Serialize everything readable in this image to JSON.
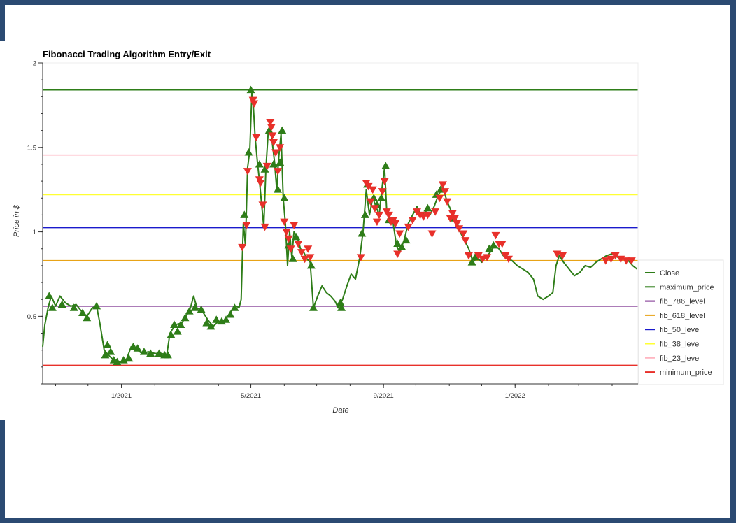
{
  "chart_data": {
    "type": "line",
    "title": "Fibonacci Trading Algorithm Entry/Exit",
    "xlabel": "Date",
    "ylabel": "Price in $",
    "x_range": [
      "2020-10-20",
      "2022-04-25"
    ],
    "ylim": [
      0.1,
      2.0
    ],
    "y_ticks": [
      {
        "value": 0.5,
        "label": "0.5"
      },
      {
        "value": 1.0,
        "label": "1"
      },
      {
        "value": 1.5,
        "label": "1.5"
      },
      {
        "value": 2.0,
        "label": "2"
      }
    ],
    "x_ticks": [
      {
        "date": "2021-01-01",
        "label": "1/2021"
      },
      {
        "date": "2021-05-01",
        "label": "5/2021"
      },
      {
        "date": "2021-09-01",
        "label": "9/2021"
      },
      {
        "date": "2022-01-01",
        "label": "1/2022"
      }
    ],
    "grid": false,
    "legend_position": "right",
    "levels": [
      {
        "name": "maximum_price",
        "value": 1.84,
        "color": "#2e7d18"
      },
      {
        "name": "fib_786_level",
        "value": 0.56,
        "color": "#7b2d8e"
      },
      {
        "name": "fib_618_level",
        "value": 0.83,
        "color": "#e8a317"
      },
      {
        "name": "fib_50_level",
        "value": 1.025,
        "color": "#1a1acc"
      },
      {
        "name": "fib_38_level",
        "value": 1.22,
        "color": "#ffff33"
      },
      {
        "name": "fib_23_level",
        "value": 1.455,
        "color": "#ffb6c1"
      },
      {
        "name": "minimum_price",
        "value": 0.21,
        "color": "#e8302a"
      }
    ],
    "close_series": {
      "name": "Close",
      "color": "#2e7d18",
      "points": [
        [
          "2020-10-20",
          0.32
        ],
        [
          "2020-10-22",
          0.45
        ],
        [
          "2020-10-25",
          0.55
        ],
        [
          "2020-10-28",
          0.62
        ],
        [
          "2020-11-01",
          0.56
        ],
        [
          "2020-11-05",
          0.62
        ],
        [
          "2020-11-10",
          0.58
        ],
        [
          "2020-11-15",
          0.56
        ],
        [
          "2020-11-20",
          0.57
        ],
        [
          "2020-11-25",
          0.53
        ],
        [
          "2020-11-30",
          0.5
        ],
        [
          "2020-12-05",
          0.55
        ],
        [
          "2020-12-09",
          0.56
        ],
        [
          "2020-12-12",
          0.46
        ],
        [
          "2020-12-16",
          0.3
        ],
        [
          "2020-12-20",
          0.27
        ],
        [
          "2020-12-25",
          0.24
        ],
        [
          "2021-01-01",
          0.23
        ],
        [
          "2021-01-06",
          0.25
        ],
        [
          "2021-01-10",
          0.32
        ],
        [
          "2021-01-16",
          0.3
        ],
        [
          "2021-01-20",
          0.28
        ],
        [
          "2021-01-26",
          0.29
        ],
        [
          "2021-02-01",
          0.28
        ],
        [
          "2021-02-07",
          0.28
        ],
        [
          "2021-02-12",
          0.27
        ],
        [
          "2021-02-15",
          0.4
        ],
        [
          "2021-02-20",
          0.45
        ],
        [
          "2021-02-26",
          0.46
        ],
        [
          "2021-03-02",
          0.5
        ],
        [
          "2021-03-06",
          0.55
        ],
        [
          "2021-03-09",
          0.62
        ],
        [
          "2021-03-12",
          0.55
        ],
        [
          "2021-03-17",
          0.53
        ],
        [
          "2021-03-22",
          0.48
        ],
        [
          "2021-03-27",
          0.44
        ],
        [
          "2021-04-01",
          0.47
        ],
        [
          "2021-04-05",
          0.47
        ],
        [
          "2021-04-10",
          0.5
        ],
        [
          "2021-04-14",
          0.54
        ],
        [
          "2021-04-18",
          0.56
        ],
        [
          "2021-04-20",
          0.55
        ],
        [
          "2021-04-22",
          0.6
        ],
        [
          "2021-04-24",
          1.05
        ],
        [
          "2021-04-26",
          0.92
        ],
        [
          "2021-04-28",
          1.38
        ],
        [
          "2021-04-30",
          1.48
        ],
        [
          "2021-05-02",
          1.83
        ],
        [
          "2021-05-03",
          1.78
        ],
        [
          "2021-05-05",
          1.56
        ],
        [
          "2021-05-07",
          1.42
        ],
        [
          "2021-05-09",
          1.3
        ],
        [
          "2021-05-11",
          1.16
        ],
        [
          "2021-05-13",
          1.03
        ],
        [
          "2021-05-15",
          1.38
        ],
        [
          "2021-05-17",
          1.58
        ],
        [
          "2021-05-19",
          1.61
        ],
        [
          "2021-05-21",
          1.52
        ],
        [
          "2021-05-23",
          1.41
        ],
        [
          "2021-05-25",
          1.25
        ],
        [
          "2021-05-27",
          1.45
        ],
        [
          "2021-05-29",
          1.58
        ],
        [
          "2021-05-31",
          1.2
        ],
        [
          "2021-06-02",
          1.05
        ],
        [
          "2021-06-04",
          0.8
        ],
        [
          "2021-06-06",
          1.0
        ],
        [
          "2021-06-08",
          0.85
        ],
        [
          "2021-06-10",
          1.0
        ],
        [
          "2021-06-13",
          0.97
        ],
        [
          "2021-06-16",
          0.9
        ],
        [
          "2021-06-19",
          0.88
        ],
        [
          "2021-06-22",
          0.84
        ],
        [
          "2021-06-25",
          0.82
        ],
        [
          "2021-06-28",
          0.55
        ],
        [
          "2021-07-02",
          0.62
        ],
        [
          "2021-07-06",
          0.68
        ],
        [
          "2021-07-10",
          0.64
        ],
        [
          "2021-07-14",
          0.62
        ],
        [
          "2021-07-18",
          0.59
        ],
        [
          "2021-07-21",
          0.55
        ],
        [
          "2021-07-25",
          0.6
        ],
        [
          "2021-07-29",
          0.68
        ],
        [
          "2021-08-02",
          0.75
        ],
        [
          "2021-08-06",
          0.72
        ],
        [
          "2021-08-10",
          0.85
        ],
        [
          "2021-08-13",
          1.0
        ],
        [
          "2021-08-16",
          1.25
        ],
        [
          "2021-08-19",
          1.1
        ],
        [
          "2021-08-22",
          1.2
        ],
        [
          "2021-08-25",
          1.15
        ],
        [
          "2021-08-28",
          1.1
        ],
        [
          "2021-08-31",
          1.28
        ],
        [
          "2021-09-02",
          1.38
        ],
        [
          "2021-09-04",
          1.12
        ],
        [
          "2021-09-07",
          1.05
        ],
        [
          "2021-09-10",
          1.05
        ],
        [
          "2021-09-13",
          0.92
        ],
        [
          "2021-09-16",
          0.88
        ],
        [
          "2021-09-20",
          0.95
        ],
        [
          "2021-09-24",
          1.05
        ],
        [
          "2021-09-28",
          1.1
        ],
        [
          "2021-10-02",
          1.15
        ],
        [
          "2021-10-06",
          1.1
        ],
        [
          "2021-10-10",
          1.12
        ],
        [
          "2021-10-14",
          1.1
        ],
        [
          "2021-10-18",
          1.15
        ],
        [
          "2021-10-22",
          1.22
        ],
        [
          "2021-10-26",
          1.26
        ],
        [
          "2021-10-30",
          1.18
        ],
        [
          "2021-11-03",
          1.12
        ],
        [
          "2021-11-07",
          1.08
        ],
        [
          "2021-11-11",
          1.0
        ],
        [
          "2021-11-15",
          0.95
        ],
        [
          "2021-11-19",
          0.9
        ],
        [
          "2021-11-23",
          0.82
        ],
        [
          "2021-11-27",
          0.85
        ],
        [
          "2021-12-01",
          0.82
        ],
        [
          "2021-12-05",
          0.85
        ],
        [
          "2021-12-09",
          0.88
        ],
        [
          "2021-12-13",
          0.92
        ],
        [
          "2021-12-17",
          0.9
        ],
        [
          "2021-12-21",
          0.86
        ],
        [
          "2021-12-25",
          0.84
        ],
        [
          "2021-12-29",
          0.83
        ],
        [
          "2022-01-03",
          0.8
        ],
        [
          "2022-01-08",
          0.78
        ],
        [
          "2022-01-13",
          0.76
        ],
        [
          "2022-01-18",
          0.72
        ],
        [
          "2022-01-22",
          0.62
        ],
        [
          "2022-01-27",
          0.6
        ],
        [
          "2022-02-01",
          0.62
        ],
        [
          "2022-02-05",
          0.64
        ],
        [
          "2022-02-08",
          0.8
        ],
        [
          "2022-02-11",
          0.86
        ],
        [
          "2022-02-15",
          0.82
        ],
        [
          "2022-02-20",
          0.78
        ],
        [
          "2022-02-25",
          0.74
        ],
        [
          "2022-03-02",
          0.76
        ],
        [
          "2022-03-07",
          0.8
        ],
        [
          "2022-03-12",
          0.79
        ],
        [
          "2022-03-17",
          0.82
        ],
        [
          "2022-03-22",
          0.84
        ],
        [
          "2022-03-27",
          0.86
        ],
        [
          "2022-04-01",
          0.87
        ],
        [
          "2022-04-06",
          0.85
        ],
        [
          "2022-04-11",
          0.84
        ],
        [
          "2022-04-16",
          0.83
        ],
        [
          "2022-04-20",
          0.8
        ],
        [
          "2022-04-24",
          0.78
        ]
      ]
    },
    "buy_signals": [
      [
        "2020-10-26",
        0.62
      ],
      [
        "2020-10-29",
        0.55
      ],
      [
        "2020-11-07",
        0.57
      ],
      [
        "2020-11-18",
        0.55
      ],
      [
        "2020-11-26",
        0.52
      ],
      [
        "2020-11-30",
        0.49
      ],
      [
        "2020-12-09",
        0.56
      ],
      [
        "2020-12-17",
        0.27
      ],
      [
        "2020-12-19",
        0.33
      ],
      [
        "2020-12-22",
        0.29
      ],
      [
        "2020-12-25",
        0.24
      ],
      [
        "2020-12-28",
        0.23
      ],
      [
        "2021-01-03",
        0.24
      ],
      [
        "2021-01-08",
        0.25
      ],
      [
        "2021-01-12",
        0.32
      ],
      [
        "2021-01-16",
        0.31
      ],
      [
        "2021-01-22",
        0.29
      ],
      [
        "2021-01-28",
        0.28
      ],
      [
        "2021-02-05",
        0.28
      ],
      [
        "2021-02-10",
        0.27
      ],
      [
        "2021-02-13",
        0.27
      ],
      [
        "2021-02-16",
        0.39
      ],
      [
        "2021-02-19",
        0.45
      ],
      [
        "2021-02-22",
        0.41
      ],
      [
        "2021-02-25",
        0.45
      ],
      [
        "2021-03-01",
        0.49
      ],
      [
        "2021-03-05",
        0.53
      ],
      [
        "2021-03-10",
        0.55
      ],
      [
        "2021-03-16",
        0.54
      ],
      [
        "2021-03-21",
        0.46
      ],
      [
        "2021-03-25",
        0.44
      ],
      [
        "2021-03-30",
        0.48
      ],
      [
        "2021-04-04",
        0.47
      ],
      [
        "2021-04-08",
        0.48
      ],
      [
        "2021-04-12",
        0.51
      ],
      [
        "2021-04-16",
        0.55
      ],
      [
        "2021-04-25",
        1.1
      ],
      [
        "2021-04-29",
        1.47
      ],
      [
        "2021-05-01",
        1.84
      ],
      [
        "2021-05-09",
        1.4
      ],
      [
        "2021-05-14",
        1.37
      ],
      [
        "2021-05-18",
        1.6
      ],
      [
        "2021-05-22",
        1.4
      ],
      [
        "2021-05-26",
        1.25
      ],
      [
        "2021-05-28",
        1.41
      ],
      [
        "2021-05-30",
        1.6
      ],
      [
        "2021-06-01",
        1.2
      ],
      [
        "2021-06-05",
        0.92
      ],
      [
        "2021-06-09",
        0.84
      ],
      [
        "2021-06-12",
        0.97
      ],
      [
        "2021-06-26",
        0.8
      ],
      [
        "2021-06-28",
        0.55
      ],
      [
        "2021-07-24",
        0.55
      ],
      [
        "2021-07-23",
        0.58
      ],
      [
        "2021-08-12",
        0.99
      ],
      [
        "2021-08-15",
        1.1
      ],
      [
        "2021-08-17",
        1.28
      ],
      [
        "2021-08-23",
        1.2
      ],
      [
        "2021-08-26",
        1.16
      ],
      [
        "2021-08-30",
        1.2
      ],
      [
        "2021-09-03",
        1.39
      ],
      [
        "2021-09-06",
        1.07
      ],
      [
        "2021-09-14",
        0.93
      ],
      [
        "2021-09-18",
        0.91
      ],
      [
        "2021-09-22",
        0.95
      ],
      [
        "2021-10-12",
        1.14
      ],
      [
        "2021-10-20",
        1.22
      ],
      [
        "2021-10-24",
        1.25
      ],
      [
        "2021-11-05",
        1.08
      ],
      [
        "2021-11-22",
        0.82
      ],
      [
        "2021-11-25",
        0.85
      ],
      [
        "2021-12-08",
        0.9
      ],
      [
        "2021-12-12",
        0.92
      ]
    ],
    "sell_signals": [
      [
        "2021-04-23",
        0.91
      ],
      [
        "2021-04-27",
        1.04
      ],
      [
        "2021-04-28",
        1.36
      ],
      [
        "2021-05-03",
        1.78
      ],
      [
        "2021-05-04",
        1.76
      ],
      [
        "2021-05-06",
        1.56
      ],
      [
        "2021-05-09",
        1.31
      ],
      [
        "2021-05-10",
        1.29
      ],
      [
        "2021-05-12",
        1.16
      ],
      [
        "2021-05-14",
        1.03
      ],
      [
        "2021-05-16",
        1.39
      ],
      [
        "2021-05-19",
        1.65
      ],
      [
        "2021-05-20",
        1.62
      ],
      [
        "2021-05-21",
        1.57
      ],
      [
        "2021-05-22",
        1.53
      ],
      [
        "2021-05-24",
        1.47
      ],
      [
        "2021-05-26",
        1.36
      ],
      [
        "2021-05-28",
        1.5
      ],
      [
        "2021-06-01",
        1.06
      ],
      [
        "2021-06-03",
        1.0
      ],
      [
        "2021-06-05",
        0.96
      ],
      [
        "2021-06-07",
        0.9
      ],
      [
        "2021-06-10",
        1.04
      ],
      [
        "2021-06-14",
        0.93
      ],
      [
        "2021-06-17",
        0.88
      ],
      [
        "2021-06-20",
        0.84
      ],
      [
        "2021-06-23",
        0.9
      ],
      [
        "2021-06-25",
        0.85
      ],
      [
        "2021-08-11",
        0.85
      ],
      [
        "2021-08-16",
        1.29
      ],
      [
        "2021-08-18",
        1.27
      ],
      [
        "2021-08-20",
        1.18
      ],
      [
        "2021-08-22",
        1.25
      ],
      [
        "2021-08-24",
        1.14
      ],
      [
        "2021-08-26",
        1.06
      ],
      [
        "2021-08-28",
        1.1
      ],
      [
        "2021-08-31",
        1.24
      ],
      [
        "2021-09-02",
        1.3
      ],
      [
        "2021-09-04",
        1.12
      ],
      [
        "2021-09-06",
        1.1
      ],
      [
        "2021-09-08",
        1.06
      ],
      [
        "2021-09-10",
        1.07
      ],
      [
        "2021-09-12",
        1.05
      ],
      [
        "2021-09-14",
        0.87
      ],
      [
        "2021-09-16",
        0.99
      ],
      [
        "2021-09-24",
        1.03
      ],
      [
        "2021-09-28",
        1.07
      ],
      [
        "2021-10-02",
        1.12
      ],
      [
        "2021-10-05",
        1.1
      ],
      [
        "2021-10-08",
        1.09
      ],
      [
        "2021-10-12",
        1.1
      ],
      [
        "2021-10-16",
        0.99
      ],
      [
        "2021-10-19",
        1.12
      ],
      [
        "2021-10-23",
        1.2
      ],
      [
        "2021-10-26",
        1.28
      ],
      [
        "2021-10-28",
        1.24
      ],
      [
        "2021-10-30",
        1.18
      ],
      [
        "2021-11-02",
        1.08
      ],
      [
        "2021-11-04",
        1.11
      ],
      [
        "2021-11-06",
        1.08
      ],
      [
        "2021-11-08",
        1.05
      ],
      [
        "2021-11-10",
        1.02
      ],
      [
        "2021-11-14",
        0.99
      ],
      [
        "2021-11-16",
        0.95
      ],
      [
        "2021-11-19",
        0.86
      ],
      [
        "2021-11-28",
        0.86
      ],
      [
        "2021-12-02",
        0.84
      ],
      [
        "2021-12-06",
        0.85
      ],
      [
        "2021-12-14",
        0.98
      ],
      [
        "2021-12-17",
        0.93
      ],
      [
        "2021-12-20",
        0.93
      ],
      [
        "2021-12-23",
        0.86
      ],
      [
        "2021-12-26",
        0.84
      ],
      [
        "2022-02-09",
        0.87
      ],
      [
        "2022-02-14",
        0.86
      ],
      [
        "2022-03-26",
        0.83
      ],
      [
        "2022-03-31",
        0.84
      ],
      [
        "2022-04-04",
        0.86
      ],
      [
        "2022-04-09",
        0.84
      ],
      [
        "2022-04-14",
        0.83
      ],
      [
        "2022-04-19",
        0.83
      ]
    ],
    "legend": [
      "Close",
      "maximum_price",
      "fib_786_level",
      "fib_618_level",
      "fib_50_level",
      "fib_38_level",
      "fib_23_level",
      "minimum_price"
    ],
    "colors": {
      "buy_marker": "#2e7d18",
      "sell_marker": "#e8302a",
      "frame": "#2b4a72"
    }
  }
}
